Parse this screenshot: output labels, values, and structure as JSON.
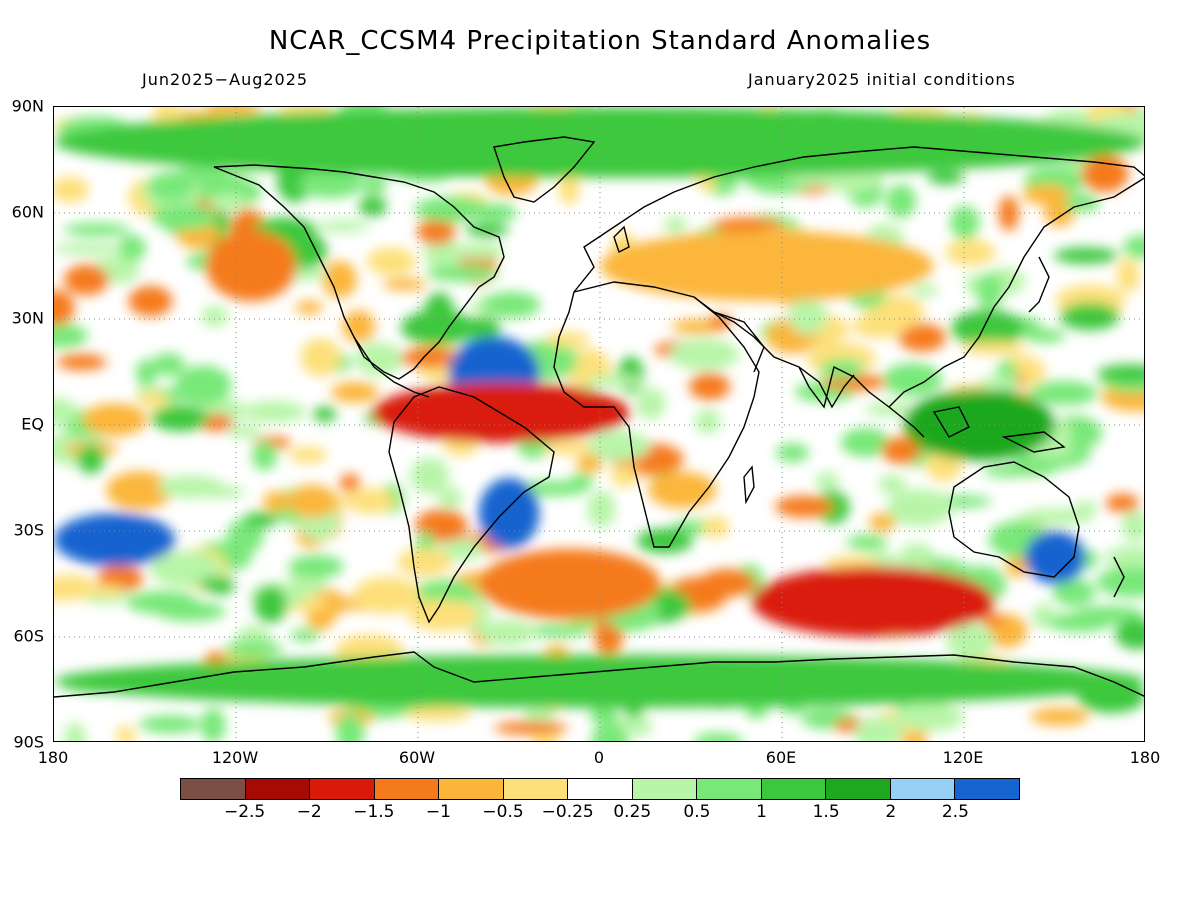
{
  "header": {
    "title": "NCAR_CCSM4 Precipitation Standard Anomalies",
    "season": "Jun2025−Aug2025",
    "init": "January2025 initial conditions"
  },
  "axes": {
    "lat_labels": [
      "90N",
      "60N",
      "30N",
      "EQ",
      "30S",
      "60S",
      "90S"
    ],
    "lon_labels": [
      "180",
      "120W",
      "60W",
      "0",
      "60E",
      "120E",
      "180"
    ]
  },
  "legend": {
    "colors": [
      "#7b4f44",
      "#a50a05",
      "#d91a0a",
      "#f57a1c",
      "#fbb63a",
      "#fde07a",
      "#ffffff",
      "#b8f5a8",
      "#78e878",
      "#3cc83c",
      "#1ea81e",
      "#96d0f5",
      "#1664d0"
    ],
    "labels": [
      "−2.5",
      "−2",
      "−1.5",
      "−1",
      "−0.5",
      "−0.25",
      "0.25",
      "0.5",
      "1",
      "1.5",
      "2",
      "2.5"
    ]
  },
  "map_data": {
    "variable": "Precipitation standard anomaly",
    "lon_range": [
      -180,
      180
    ],
    "lat_range": [
      -90,
      90
    ],
    "anomaly_regions": [
      {
        "name": "Tropical North Atlantic",
        "lon": [
          -50,
          -20
        ],
        "lat": [
          5,
          25
        ],
        "value": 2.5
      },
      {
        "name": "Northern South America / Equatorial Atlantic",
        "lon": [
          -75,
          10
        ],
        "lat": [
          -5,
          12
        ],
        "value": -2
      },
      {
        "name": "Subtropical South Atlantic",
        "lon": [
          -40,
          -20
        ],
        "lat": [
          -35,
          -15
        ],
        "value": 2.5
      },
      {
        "name": "Subtropical South Pacific",
        "lon": [
          -180,
          -140
        ],
        "lat": [
          -40,
          -25
        ],
        "value": 2.5
      },
      {
        "name": "Southern Ocean south of Indian Ocean",
        "lon": [
          50,
          130
        ],
        "lat": [
          -60,
          -40
        ],
        "value": -2
      },
      {
        "name": "South Atlantic midlatitudes",
        "lon": [
          -40,
          20
        ],
        "lat": [
          -55,
          -35
        ],
        "value": -1.5
      },
      {
        "name": "Western North America",
        "lon": [
          -130,
          -100
        ],
        "lat": [
          35,
          55
        ],
        "value": -1.5
      },
      {
        "name": "Eurasia midlatitudes",
        "lon": [
          0,
          110
        ],
        "lat": [
          35,
          55
        ],
        "value": -1
      },
      {
        "name": "Southeast Australia / Tasman",
        "lon": [
          140,
          160
        ],
        "lat": [
          -45,
          -30
        ],
        "value": 2.5
      },
      {
        "name": "Maritime Continent",
        "lon": [
          100,
          150
        ],
        "lat": [
          -10,
          10
        ],
        "value": 1.5
      },
      {
        "name": "Southern ocean belt",
        "lon": [
          -180,
          180
        ],
        "lat": [
          -80,
          -65
        ],
        "value": 1
      },
      {
        "name": "Arctic",
        "lon": [
          -180,
          180
        ],
        "lat": [
          70,
          90
        ],
        "value": 1
      }
    ]
  }
}
